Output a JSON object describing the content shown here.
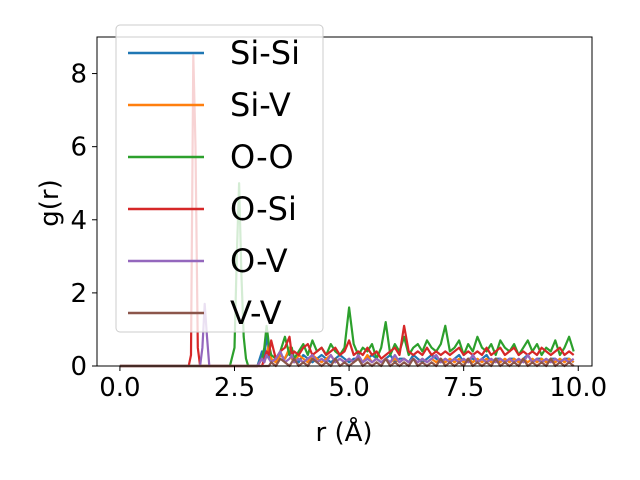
{
  "chart_data": {
    "type": "line",
    "title": "",
    "xlabel": "r (Å)",
    "ylabel": "g(r)",
    "xlim": [
      -0.5,
      10.3
    ],
    "ylim": [
      0,
      9.0
    ],
    "xticks": [
      0.0,
      2.5,
      5.0,
      7.5,
      10.0
    ],
    "xtick_labels": [
      "0.0",
      "2.5",
      "5.0",
      "7.5",
      "10.0"
    ],
    "yticks": [
      0,
      2,
      4,
      6,
      8
    ],
    "ytick_labels": [
      "0",
      "2",
      "4",
      "6",
      "8"
    ],
    "grid": false,
    "legend_position": "upper-left",
    "x": [
      0,
      0.5,
      1.0,
      1.4,
      1.5,
      1.55,
      1.6,
      1.65,
      1.7,
      1.75,
      1.8,
      1.85,
      1.9,
      1.95,
      2.0,
      2.2,
      2.4,
      2.5,
      2.55,
      2.6,
      2.65,
      2.7,
      2.75,
      2.8,
      2.9,
      3.0,
      3.1,
      3.15,
      3.2,
      3.25,
      3.3,
      3.4,
      3.5,
      3.6,
      3.7,
      3.75,
      3.8,
      3.9,
      4.0,
      4.1,
      4.2,
      4.3,
      4.4,
      4.5,
      4.6,
      4.7,
      4.8,
      4.9,
      5.0,
      5.1,
      5.2,
      5.3,
      5.4,
      5.5,
      5.6,
      5.7,
      5.8,
      5.9,
      6.0,
      6.1,
      6.2,
      6.3,
      6.4,
      6.5,
      6.6,
      6.7,
      6.8,
      6.9,
      7.0,
      7.1,
      7.2,
      7.3,
      7.4,
      7.5,
      7.6,
      7.7,
      7.8,
      7.9,
      8.0,
      8.1,
      8.2,
      8.3,
      8.4,
      8.5,
      8.6,
      8.7,
      8.8,
      8.9,
      9.0,
      9.1,
      9.2,
      9.3,
      9.4,
      9.5,
      9.6,
      9.7,
      9.8,
      9.9
    ],
    "series": [
      {
        "name": "Si-Si",
        "color": "#1f77b4",
        "values": [
          0,
          0,
          0,
          0,
          0,
          0,
          0,
          0,
          0,
          0,
          0,
          0,
          0,
          0,
          0,
          0,
          0,
          0,
          0,
          0,
          0,
          0,
          0,
          0,
          0,
          0,
          0.4,
          0.2,
          0.9,
          0.3,
          0.1,
          0.2,
          0.3,
          0.2,
          0.4,
          0.3,
          0.2,
          0.1,
          0.3,
          0.2,
          0.1,
          0.2,
          0.3,
          0.2,
          0.1,
          0.2,
          0.3,
          0.2,
          0.1,
          0.2,
          0.2,
          0.1,
          0.2,
          0.3,
          0.2,
          0.1,
          0.2,
          0.3,
          0.1,
          0.2,
          0.2,
          0.1,
          0.3,
          0.2,
          0.1,
          0.2,
          0.3,
          0.2,
          0.1,
          0.2,
          0.1,
          0.2,
          0.3,
          0.1,
          0.2,
          0.2,
          0.1,
          0.2,
          0.3,
          0.1,
          0.2,
          0.2,
          0.1,
          0.2,
          0.2,
          0.1,
          0.2,
          0.3,
          0.1,
          0.2,
          0.2,
          0.1,
          0.2,
          0.2,
          0.1,
          0.2,
          0.2,
          0.1
        ]
      },
      {
        "name": "Si-V",
        "color": "#ff7f0e",
        "values": [
          0,
          0,
          0,
          0,
          0,
          0,
          0,
          0,
          0,
          0,
          0,
          0,
          0,
          0,
          0,
          0,
          0,
          0,
          0,
          0,
          0,
          0,
          0,
          0,
          0,
          0,
          0.2,
          0.1,
          0.3,
          0.6,
          0.2,
          0.1,
          0.3,
          0.2,
          0.5,
          0.2,
          0.1,
          0.3,
          0.2,
          0.1,
          0.3,
          0.2,
          0.1,
          0.2,
          0.3,
          0.1,
          0.2,
          0.1,
          0.2,
          0.1,
          0.2,
          0.1,
          0.3,
          0.1,
          0.2,
          0.1,
          0.2,
          0.1,
          0.2,
          0.1,
          0.2,
          0.1,
          0.2,
          0.1,
          0.2,
          0.1,
          0.2,
          0.1,
          0.2,
          0.1,
          0.2,
          0.1,
          0.2,
          0.1,
          0.2,
          0.1,
          0.2,
          0.1,
          0.2,
          0.1,
          0.2,
          0.1,
          0.2,
          0.1,
          0.2,
          0.1,
          0.2,
          0.1,
          0.2,
          0.1,
          0.2,
          0.1,
          0.2,
          0.1,
          0.2,
          0.1,
          0.2,
          0.1
        ]
      },
      {
        "name": "O-O",
        "color": "#2ca02c",
        "values": [
          0,
          0,
          0,
          0,
          0,
          0,
          0,
          0,
          0,
          0,
          0,
          0,
          0,
          0,
          0,
          0,
          0,
          0.5,
          3.0,
          5.0,
          2.5,
          0.8,
          0.2,
          0,
          0,
          0,
          0.2,
          0.5,
          1.1,
          0.6,
          0.3,
          0.2,
          0.4,
          0.8,
          0.3,
          0.5,
          0.2,
          0.4,
          0.6,
          0.3,
          0.7,
          0.4,
          0.5,
          0.3,
          0.6,
          0.4,
          0.3,
          0.5,
          1.6,
          0.6,
          0.3,
          0.5,
          0.4,
          0.6,
          0.2,
          0.5,
          1.2,
          0.3,
          0.6,
          0.4,
          0.8,
          0.3,
          0.5,
          0.6,
          0.4,
          0.7,
          0.5,
          0.4,
          0.6,
          1.1,
          0.4,
          0.5,
          0.7,
          0.3,
          0.6,
          0.4,
          0.8,
          0.5,
          0.4,
          0.6,
          0.3,
          0.7,
          0.5,
          0.4,
          0.6,
          0.3,
          0.5,
          0.7,
          0.4,
          0.6,
          0.3,
          0.5,
          0.4,
          0.7,
          0.3,
          0.5,
          0.8,
          0.4
        ]
      },
      {
        "name": "O-Si",
        "color": "#d62728",
        "values": [
          0,
          0,
          0,
          0,
          0,
          0.3,
          8.5,
          6.0,
          0.5,
          0,
          0,
          0,
          0,
          0,
          0,
          0,
          0,
          0,
          0,
          0,
          0,
          0,
          0,
          0,
          0,
          0,
          0,
          0.2,
          0.4,
          0.3,
          0.7,
          0.2,
          0.4,
          0.5,
          0.8,
          0.3,
          0.4,
          0.3,
          0.5,
          0.6,
          0.3,
          0.4,
          0.5,
          0.3,
          0.4,
          0.5,
          0.3,
          0.4,
          0.7,
          0.3,
          0.4,
          0.3,
          0.5,
          0.3,
          0.4,
          0.2,
          0.3,
          0.4,
          0.5,
          0.3,
          1.1,
          0.4,
          0.3,
          0.4,
          0.3,
          0.5,
          0.3,
          0.4,
          0.3,
          0.4,
          0.3,
          0.4,
          0.5,
          0.3,
          0.4,
          0.3,
          0.4,
          0.3,
          0.5,
          0.3,
          0.4,
          0.5,
          0.3,
          0.4,
          0.5,
          0.3,
          0.4,
          0.3,
          0.4,
          0.3,
          0.5,
          0.4,
          0.3,
          0.4,
          0.5,
          0.3,
          0.4,
          0.3
        ]
      },
      {
        "name": "O-V",
        "color": "#9467bd",
        "values": [
          0,
          0,
          0,
          0,
          0,
          0,
          0,
          0,
          0,
          0,
          0.5,
          1.7,
          0.8,
          0,
          0,
          0,
          0,
          0,
          0,
          0,
          0,
          0,
          0,
          0,
          0,
          0,
          0.2,
          0.1,
          0.3,
          0.2,
          0.1,
          0.2,
          0.4,
          0.1,
          0.2,
          0.3,
          0.1,
          0.2,
          0.1,
          0.2,
          0.3,
          0.1,
          0.2,
          0.1,
          0.3,
          0.1,
          0.2,
          0.1,
          0.2,
          0.1,
          0.3,
          0.1,
          0.2,
          0.1,
          0.2,
          0.1,
          0.2,
          0.1,
          0.3,
          0.1,
          0.2,
          0.1,
          0.2,
          0.1,
          0.2,
          0.1,
          0.2,
          0.3,
          0.1,
          0.2,
          0.1,
          0.2,
          0.1,
          0.2,
          0.1,
          0.3,
          0.1,
          0.2,
          0.1,
          0.2,
          0.1,
          0.2,
          0.1,
          0.2,
          0.1,
          0.2,
          0.1,
          0.3,
          0.1,
          0.2,
          0.1,
          0.2,
          0.1,
          0.2,
          0.1,
          0.2,
          0.1,
          0.2
        ]
      },
      {
        "name": "V-V",
        "color": "#8c564b",
        "values": [
          0,
          0,
          0,
          0,
          0,
          0,
          0,
          0,
          0,
          0,
          0,
          0,
          0,
          0,
          0,
          0,
          0,
          0,
          0,
          0,
          0,
          0,
          0,
          0,
          0,
          0,
          0,
          0,
          0,
          0,
          0.1,
          0,
          0.2,
          0.1,
          0,
          0.1,
          0.2,
          0,
          0.1,
          0,
          0.2,
          0.1,
          0,
          0.1,
          0,
          0.2,
          0,
          0.1,
          0,
          0.1,
          0.2,
          0,
          0.1,
          0,
          0.1,
          0,
          0.2,
          0,
          0.1,
          0,
          0.1,
          0,
          0.2,
          0,
          0.1,
          0,
          0.1,
          0,
          0.2,
          0,
          0.1,
          0,
          0.1,
          0,
          0.2,
          0,
          0.1,
          0,
          0.1,
          0,
          0.2,
          0,
          0.1,
          0,
          0.1,
          0,
          0.2,
          0,
          0.1,
          0,
          0.1,
          0,
          0.2,
          0,
          0.1,
          0,
          0.1,
          0
        ]
      }
    ]
  }
}
